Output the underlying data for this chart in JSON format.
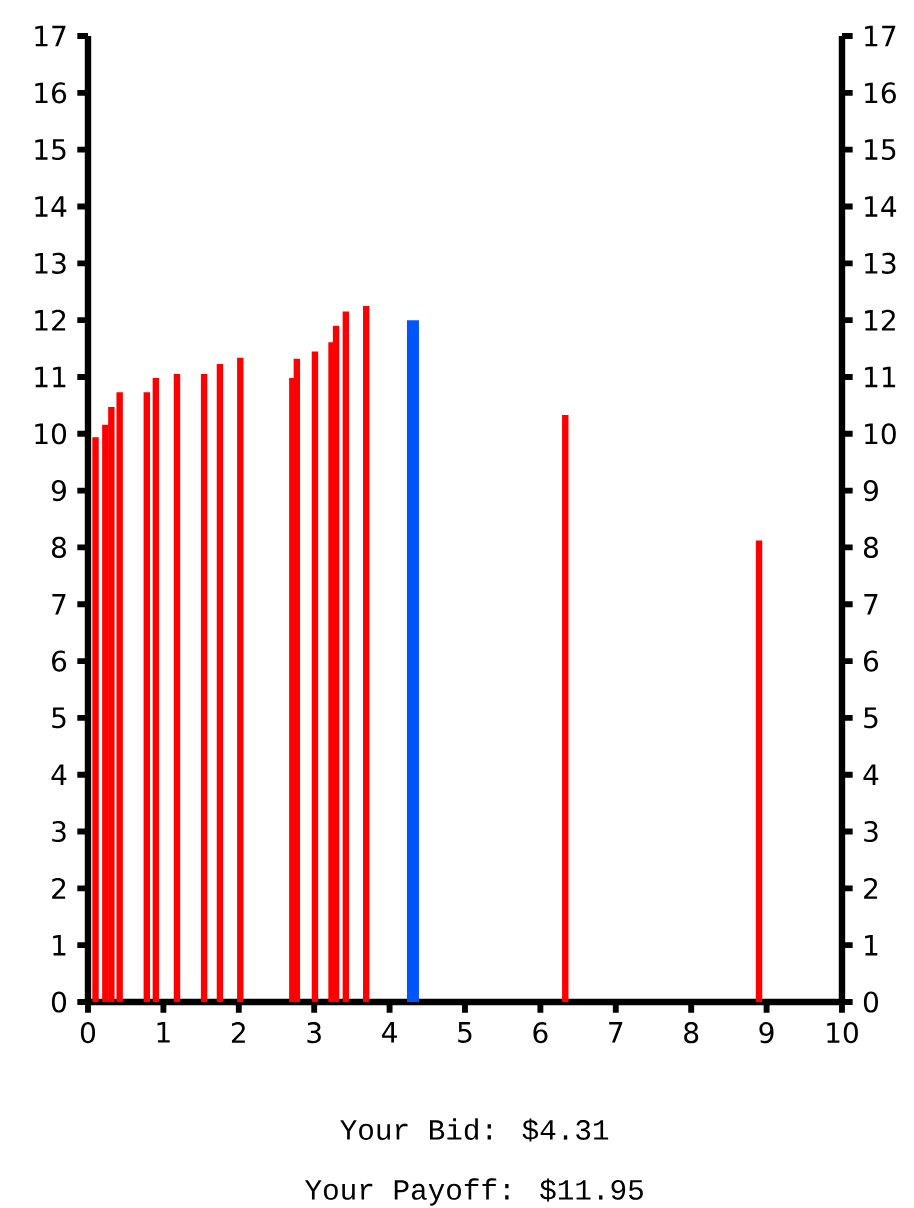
{
  "chart_data": {
    "type": "bar",
    "x": [
      0.1,
      0.23,
      0.31,
      0.42,
      0.78,
      0.9,
      1.18,
      1.54,
      1.75,
      2.02,
      2.71,
      2.77,
      3.01,
      3.23,
      3.29,
      3.42,
      3.69,
      4.31,
      6.33,
      8.9
    ],
    "values": [
      9.94,
      10.16,
      10.47,
      10.73,
      10.73,
      10.98,
      11.05,
      11.05,
      11.23,
      11.34,
      10.98,
      11.32,
      11.45,
      11.61,
      11.9,
      12.15,
      12.25,
      12.0,
      10.33,
      8.12
    ],
    "colors": [
      "#ff0000",
      "#ff0000",
      "#ff0000",
      "#ff0000",
      "#ff0000",
      "#ff0000",
      "#ff0000",
      "#ff0000",
      "#ff0000",
      "#ff0000",
      "#ff0000",
      "#ff0000",
      "#ff0000",
      "#ff0000",
      "#ff0000",
      "#ff0000",
      "#ff0000",
      "#0055ff",
      "#ff0000",
      "#ff0000"
    ],
    "xlim": [
      0,
      10
    ],
    "xticks": [
      0,
      1,
      2,
      3,
      4,
      5,
      6,
      7,
      8,
      9,
      10
    ],
    "ylim": [
      0,
      17
    ],
    "yticks": [
      0,
      1,
      2,
      3,
      4,
      5,
      6,
      7,
      8,
      9,
      10,
      11,
      12,
      13,
      14,
      15,
      16,
      17
    ],
    "y2lim": [
      0,
      17
    ],
    "y2ticks": [
      0,
      1,
      2,
      3,
      4,
      5,
      6,
      7,
      8,
      9,
      10,
      11,
      12,
      13,
      14,
      15,
      16,
      17
    ],
    "annotations": [
      "Your Bid: $4.31",
      "Your Payoff: $11.95"
    ]
  }
}
